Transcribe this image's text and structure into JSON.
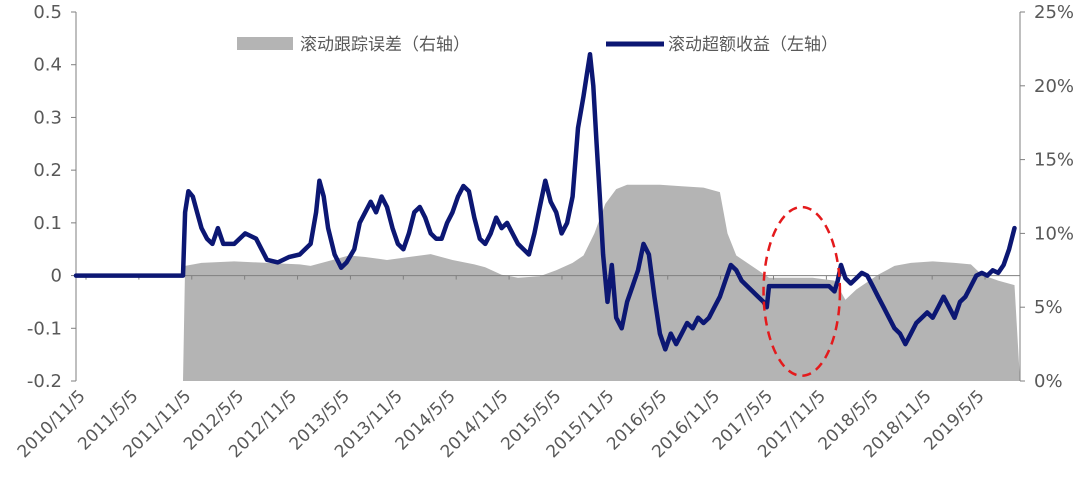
{
  "chart_data": {
    "type": "line",
    "title": "",
    "x_ticks": [
      "2010/11/5",
      "2011/5/5",
      "2011/11/5",
      "2012/5/5",
      "2012/11/5",
      "2013/5/5",
      "2013/11/5",
      "2014/5/5",
      "2014/11/5",
      "2015/5/5",
      "2015/11/5",
      "2016/5/5",
      "2016/11/5",
      "2017/5/5",
      "2017/11/5",
      "2018/5/5",
      "2018/11/5",
      "2019/5/5"
    ],
    "left_axis": {
      "min": -0.2,
      "max": 0.5,
      "ticks": [
        "-0.2",
        "-0.1",
        "0",
        "0.1",
        "0.2",
        "0.3",
        "0.4",
        "0.5"
      ]
    },
    "right_axis": {
      "min": 0,
      "max": 0.25,
      "ticks": [
        "0%",
        "5%",
        "10%",
        "15%",
        "20%",
        "25%"
      ]
    },
    "legend_placement": "top",
    "series": [
      {
        "name": "滚动跟踪误差（右轴）",
        "kind": "area",
        "axis": "right",
        "color": "#b4b4b4",
        "points": [
          [
            2011.83,
            0
          ],
          [
            2011.85,
            0.078
          ],
          [
            2012.0,
            0.08
          ],
          [
            2012.3,
            0.081
          ],
          [
            2012.6,
            0.08
          ],
          [
            2012.9,
            0.079
          ],
          [
            2013.0,
            0.078
          ],
          [
            2013.2,
            0.082
          ],
          [
            2013.35,
            0.085
          ],
          [
            2013.5,
            0.084
          ],
          [
            2013.7,
            0.082
          ],
          [
            2013.9,
            0.084
          ],
          [
            2014.1,
            0.086
          ],
          [
            2014.3,
            0.082
          ],
          [
            2014.5,
            0.079
          ],
          [
            2014.6,
            0.077
          ],
          [
            2014.75,
            0.072
          ],
          [
            2014.9,
            0.07
          ],
          [
            2015.1,
            0.071
          ],
          [
            2015.25,
            0.075
          ],
          [
            2015.4,
            0.08
          ],
          [
            2015.5,
            0.085
          ],
          [
            2015.6,
            0.1
          ],
          [
            2015.7,
            0.12
          ],
          [
            2015.8,
            0.13
          ],
          [
            2015.9,
            0.133
          ],
          [
            2016.2,
            0.133
          ],
          [
            2016.4,
            0.132
          ],
          [
            2016.6,
            0.131
          ],
          [
            2016.75,
            0.128
          ],
          [
            2016.82,
            0.1
          ],
          [
            2016.9,
            0.085
          ],
          [
            2017.0,
            0.08
          ],
          [
            2017.1,
            0.075
          ],
          [
            2017.2,
            0.07
          ],
          [
            2017.4,
            0.07
          ],
          [
            2017.6,
            0.07
          ],
          [
            2017.8,
            0.068
          ],
          [
            2017.9,
            0.055
          ],
          [
            2018.0,
            0.062
          ],
          [
            2018.2,
            0.072
          ],
          [
            2018.35,
            0.078
          ],
          [
            2018.5,
            0.08
          ],
          [
            2018.7,
            0.081
          ],
          [
            2018.9,
            0.08
          ],
          [
            2019.05,
            0.079
          ],
          [
            2019.15,
            0.072
          ],
          [
            2019.3,
            0.068
          ],
          [
            2019.45,
            0.065
          ],
          [
            2019.5,
            0
          ]
        ]
      },
      {
        "name": "滚动超额收益（左轴）",
        "kind": "line",
        "axis": "left",
        "color": "#0c1773",
        "points": [
          [
            2010.85,
            0
          ],
          [
            2011.83,
            0
          ],
          [
            2011.85,
            0.12
          ],
          [
            2011.88,
            0.16
          ],
          [
            2011.92,
            0.15
          ],
          [
            2011.96,
            0.12
          ],
          [
            2012.0,
            0.09
          ],
          [
            2012.05,
            0.07
          ],
          [
            2012.1,
            0.06
          ],
          [
            2012.15,
            0.09
          ],
          [
            2012.2,
            0.06
          ],
          [
            2012.3,
            0.06
          ],
          [
            2012.4,
            0.08
          ],
          [
            2012.5,
            0.07
          ],
          [
            2012.55,
            0.05
          ],
          [
            2012.6,
            0.03
          ],
          [
            2012.7,
            0.025
          ],
          [
            2012.8,
            0.035
          ],
          [
            2012.9,
            0.04
          ],
          [
            2013.0,
            0.06
          ],
          [
            2013.05,
            0.12
          ],
          [
            2013.08,
            0.18
          ],
          [
            2013.12,
            0.15
          ],
          [
            2013.16,
            0.09
          ],
          [
            2013.22,
            0.04
          ],
          [
            2013.28,
            0.015
          ],
          [
            2013.33,
            0.025
          ],
          [
            2013.4,
            0.05
          ],
          [
            2013.45,
            0.1
          ],
          [
            2013.5,
            0.12
          ],
          [
            2013.55,
            0.14
          ],
          [
            2013.6,
            0.12
          ],
          [
            2013.65,
            0.15
          ],
          [
            2013.7,
            0.13
          ],
          [
            2013.75,
            0.09
          ],
          [
            2013.8,
            0.06
          ],
          [
            2013.85,
            0.05
          ],
          [
            2013.9,
            0.08
          ],
          [
            2013.95,
            0.12
          ],
          [
            2014.0,
            0.13
          ],
          [
            2014.05,
            0.11
          ],
          [
            2014.1,
            0.08
          ],
          [
            2014.15,
            0.07
          ],
          [
            2014.2,
            0.07
          ],
          [
            2014.25,
            0.1
          ],
          [
            2014.3,
            0.12
          ],
          [
            2014.35,
            0.15
          ],
          [
            2014.4,
            0.17
          ],
          [
            2014.45,
            0.16
          ],
          [
            2014.5,
            0.11
          ],
          [
            2014.55,
            0.07
          ],
          [
            2014.6,
            0.06
          ],
          [
            2014.65,
            0.08
          ],
          [
            2014.7,
            0.11
          ],
          [
            2014.75,
            0.09
          ],
          [
            2014.8,
            0.1
          ],
          [
            2014.85,
            0.08
          ],
          [
            2014.9,
            0.06
          ],
          [
            2014.95,
            0.05
          ],
          [
            2015.0,
            0.04
          ],
          [
            2015.05,
            0.08
          ],
          [
            2015.1,
            0.13
          ],
          [
            2015.15,
            0.18
          ],
          [
            2015.2,
            0.14
          ],
          [
            2015.25,
            0.12
          ],
          [
            2015.3,
            0.08
          ],
          [
            2015.35,
            0.1
          ],
          [
            2015.4,
            0.15
          ],
          [
            2015.45,
            0.28
          ],
          [
            2015.5,
            0.34
          ],
          [
            2015.53,
            0.38
          ],
          [
            2015.56,
            0.42
          ],
          [
            2015.59,
            0.36
          ],
          [
            2015.62,
            0.25
          ],
          [
            2015.65,
            0.15
          ],
          [
            2015.68,
            0.04
          ],
          [
            2015.72,
            -0.05
          ],
          [
            2015.76,
            0.02
          ],
          [
            2015.8,
            -0.08
          ],
          [
            2015.85,
            -0.1
          ],
          [
            2015.9,
            -0.05
          ],
          [
            2015.95,
            -0.02
          ],
          [
            2016.0,
            0.01
          ],
          [
            2016.05,
            0.06
          ],
          [
            2016.1,
            0.04
          ],
          [
            2016.15,
            -0.04
          ],
          [
            2016.2,
            -0.11
          ],
          [
            2016.25,
            -0.14
          ],
          [
            2016.3,
            -0.11
          ],
          [
            2016.35,
            -0.13
          ],
          [
            2016.4,
            -0.11
          ],
          [
            2016.45,
            -0.09
          ],
          [
            2016.5,
            -0.1
          ],
          [
            2016.55,
            -0.08
          ],
          [
            2016.6,
            -0.09
          ],
          [
            2016.65,
            -0.08
          ],
          [
            2016.7,
            -0.06
          ],
          [
            2016.75,
            -0.04
          ],
          [
            2016.8,
            -0.01
          ],
          [
            2016.85,
            0.02
          ],
          [
            2016.9,
            0.01
          ],
          [
            2016.95,
            -0.01
          ],
          [
            2017.0,
            -0.02
          ],
          [
            2017.05,
            -0.03
          ],
          [
            2017.1,
            -0.04
          ],
          [
            2017.15,
            -0.05
          ],
          [
            2017.18,
            -0.06
          ],
          [
            2017.2,
            -0.02
          ],
          [
            2017.25,
            -0.02
          ],
          [
            2017.5,
            -0.02
          ],
          [
            2017.75,
            -0.02
          ],
          [
            2017.8,
            -0.03
          ],
          [
            2017.83,
            -0.01
          ],
          [
            2017.86,
            0.02
          ],
          [
            2017.9,
            -0.005
          ],
          [
            2017.95,
            -0.015
          ],
          [
            2018.0,
            -0.005
          ],
          [
            2018.05,
            0.005
          ],
          [
            2018.1,
            0.0
          ],
          [
            2018.15,
            -0.02
          ],
          [
            2018.2,
            -0.04
          ],
          [
            2018.25,
            -0.06
          ],
          [
            2018.3,
            -0.08
          ],
          [
            2018.35,
            -0.1
          ],
          [
            2018.4,
            -0.11
          ],
          [
            2018.45,
            -0.13
          ],
          [
            2018.5,
            -0.11
          ],
          [
            2018.55,
            -0.09
          ],
          [
            2018.6,
            -0.08
          ],
          [
            2018.65,
            -0.07
          ],
          [
            2018.7,
            -0.08
          ],
          [
            2018.75,
            -0.06
          ],
          [
            2018.8,
            -0.04
          ],
          [
            2018.85,
            -0.06
          ],
          [
            2018.9,
            -0.08
          ],
          [
            2018.95,
            -0.05
          ],
          [
            2019.0,
            -0.04
          ],
          [
            2019.05,
            -0.02
          ],
          [
            2019.1,
            0.0
          ],
          [
            2019.15,
            0.005
          ],
          [
            2019.2,
            0.0
          ],
          [
            2019.25,
            0.01
          ],
          [
            2019.3,
            0.005
          ],
          [
            2019.35,
            0.02
          ],
          [
            2019.4,
            0.05
          ],
          [
            2019.45,
            0.09
          ]
        ]
      }
    ],
    "annotation": {
      "type": "dashed-ellipse",
      "color": "#e41a1c",
      "center_x": 2017.5,
      "center_y": -0.03,
      "rx_years": 0.35,
      "ry_value": 0.16
    }
  }
}
